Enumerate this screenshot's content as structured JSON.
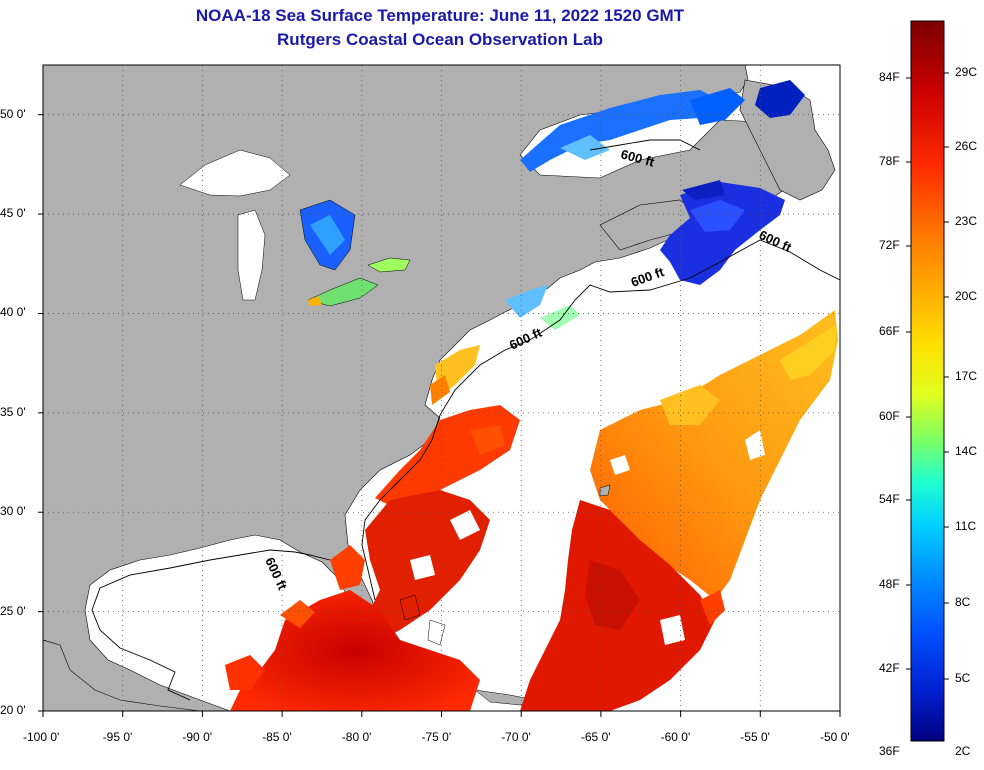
{
  "title": "NOAA-18 Sea Surface Temperature:  June 11, 2022 1520 GMT",
  "subtitle": "Rutgers Coastal Ocean Observation Lab",
  "map": {
    "lon_range": [
      -100,
      -50
    ],
    "lat_range": [
      20,
      52.5
    ],
    "lon_ticks": [
      "-100 0'",
      "-95 0'",
      "-90 0'",
      "-85 0'",
      "-80 0'",
      "-75 0'",
      "-70 0'",
      "-65 0'",
      "-60 0'",
      "-55 0'",
      "-50 0'"
    ],
    "lat_ticks": [
      "20 0'",
      "25 0'",
      "30 0'",
      "35 0'",
      "40 0'",
      "45 0'",
      "50 0'"
    ],
    "grid": "dotted",
    "land_color": "#b0b0b0",
    "cloud_color": "#ffffff",
    "contour_labels": [
      "600 ft",
      "600 ft",
      "600 ft",
      "600 ft",
      "600 ft"
    ]
  },
  "colorbar": {
    "fahrenheit_labels": [
      "84F",
      "78F",
      "72F",
      "66F",
      "60F",
      "54F",
      "48F",
      "42F",
      "36F"
    ],
    "celsius_labels": [
      "29C",
      "26C",
      "23C",
      "20C",
      "17C",
      "14C",
      "11C",
      "8C",
      "5C",
      "2C"
    ],
    "colors_top_to_bottom": [
      "#7a0000",
      "#cc0000",
      "#ff2a00",
      "#ff7a00",
      "#ffb000",
      "#ffe000",
      "#e0ff20",
      "#80ff60",
      "#20ffd0",
      "#00d0ff",
      "#0090ff",
      "#0050ff",
      "#0020d0",
      "#000080"
    ]
  }
}
